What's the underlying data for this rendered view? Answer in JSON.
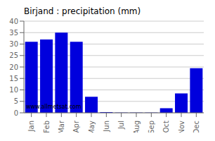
{
  "chart_data": {
    "type": "bar",
    "title": "Birjand : precipitation (mm)",
    "categories": [
      "Jan",
      "Feb",
      "Mar",
      "Apr",
      "May",
      "Jun",
      "Jul",
      "Aug",
      "Sep",
      "Oct",
      "Nov",
      "Dec"
    ],
    "values": [
      31,
      32,
      35,
      31,
      7,
      0.3,
      0.1,
      0.1,
      0.1,
      2,
      8.5,
      19.5
    ],
    "color": "#0000DD",
    "ylim": [
      0,
      40
    ],
    "yticks": [
      0,
      5,
      10,
      15,
      20,
      25,
      30,
      35,
      40
    ],
    "grid": true,
    "annotations": [
      "www.allmetsat.com"
    ]
  }
}
